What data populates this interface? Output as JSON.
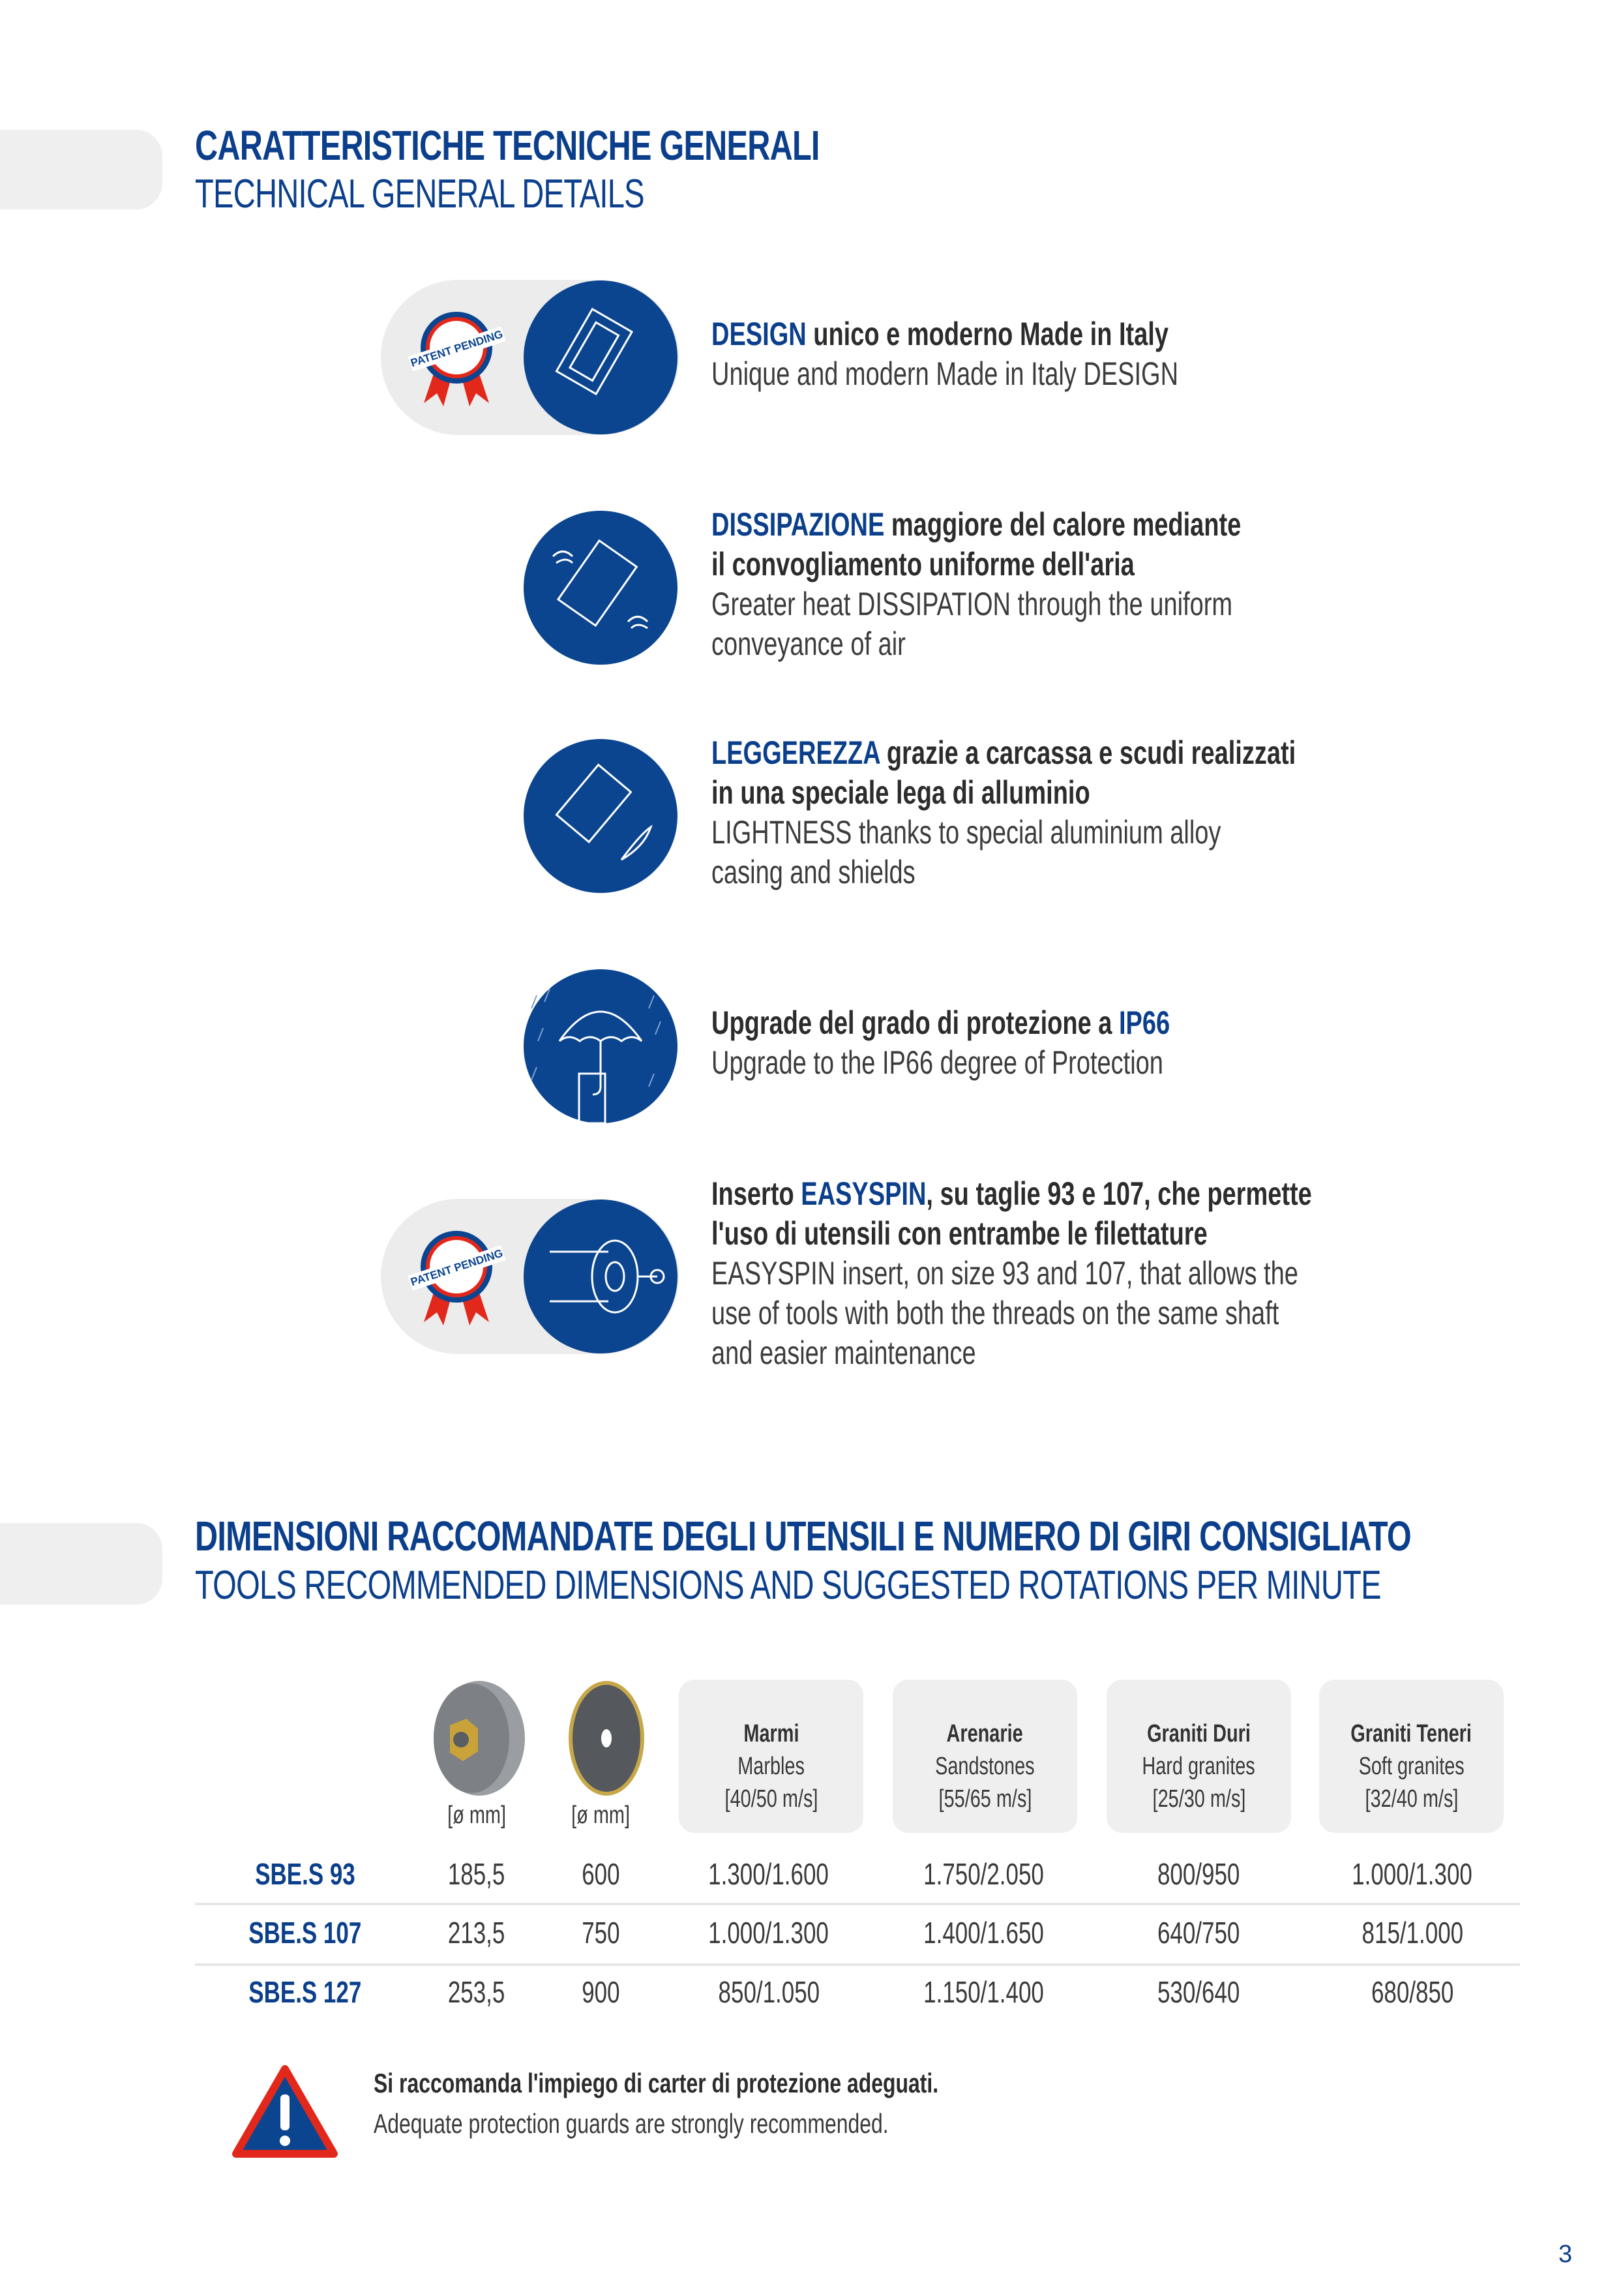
{
  "section1": {
    "title_it": "CARATTERISTICHE TECNICHE GENERALI",
    "title_en": "TECHNICAL GENERAL DETAILS"
  },
  "badge_text": "PATENT PENDING",
  "features": [
    {
      "icon": "motor-design-icon",
      "it_highlight": "DESIGN",
      "it_rest": " unico e moderno Made in Italy",
      "it_line2": "",
      "en_line1": "Unique and modern Made in Italy DESIGN",
      "en_line2": "",
      "en_line3": "",
      "patent": true
    },
    {
      "icon": "motor-airflow-icon",
      "it_highlight": "DISSIPAZIONE",
      "it_rest": " maggiore del calore mediante",
      "it_line2": "il convogliamento uniforme dell'aria",
      "en_line1": "Greater heat DISSIPATION through the uniform",
      "en_line2": "conveyance of air",
      "en_line3": "",
      "patent": false
    },
    {
      "icon": "motor-feather-icon",
      "it_highlight": "LEGGEREZZA",
      "it_rest": " grazie a carcassa e scudi realizzati",
      "it_line2": "in una speciale lega di alluminio",
      "en_line1": "LIGHTNESS thanks to special aluminium alloy",
      "en_line2": "casing and shields",
      "en_line3": "",
      "patent": false
    },
    {
      "icon": "umbrella-rain-icon",
      "it_prefix": "Upgrade del grado di protezione a ",
      "it_highlight": "IP66",
      "en_line1": "Upgrade to the IP66 degree of Protection",
      "patent": false
    },
    {
      "icon": "easyspin-shaft-icon",
      "it_prefix": "Inserto ",
      "it_highlight": "EASYSPIN",
      "it_rest": ", su taglie 93 e 107, che permette",
      "it_line2": "l'uso di utensili con entrambe le filettature",
      "en_line1": "EASYSPIN insert, on size 93 and 107, that allows the",
      "en_line2": "use of tools with both the threads on the same shaft",
      "en_line3": "and easier maintenance",
      "patent": true
    }
  ],
  "section2": {
    "title_it": "DIMENSIONI RACCOMANDATE DEGLI UTENSILI E NUMERO DI GIRI CONSIGLIATO",
    "title_en": "TOOLS RECOMMENDED DIMENSIONS AND SUGGESTED ROTATIONS PER MINUTE"
  },
  "table": {
    "tool_units": [
      "[ø mm]",
      "[ø mm]"
    ],
    "headers": [
      {
        "it": "Marmi",
        "en": "Marbles",
        "speed": "[40/50 m/s]"
      },
      {
        "it": "Arenarie",
        "en": "Sandstones",
        "speed": "[55/65 m/s]"
      },
      {
        "it": "Graniti Duri",
        "en": "Hard granites",
        "speed": "[25/30 m/s]"
      },
      {
        "it": "Graniti Teneri",
        "en": "Soft granites",
        "speed": "[32/40 m/s]"
      }
    ],
    "rows": [
      [
        "SBE.S 93",
        "185,5",
        "600",
        "1.300/1.600",
        "1.750/2.050",
        "800/950",
        "1.000/1.300"
      ],
      [
        "SBE.S 107",
        "213,5",
        "750",
        "1.000/1.300",
        "1.400/1.650",
        "640/750",
        "815/1.000"
      ],
      [
        "SBE.S 127",
        "253,5",
        "900",
        "850/1.050",
        "1.150/1.400",
        "530/640",
        "680/850"
      ]
    ]
  },
  "warning": {
    "it": "Si raccomanda l'impiego di carter di protezione adeguati.",
    "en": "Adequate protection guards are strongly recommended."
  },
  "page_number": "3",
  "colors": {
    "brand_blue": "#0b3f8c",
    "badge_red": "#e2281b",
    "panel_grey": "#efefef"
  }
}
